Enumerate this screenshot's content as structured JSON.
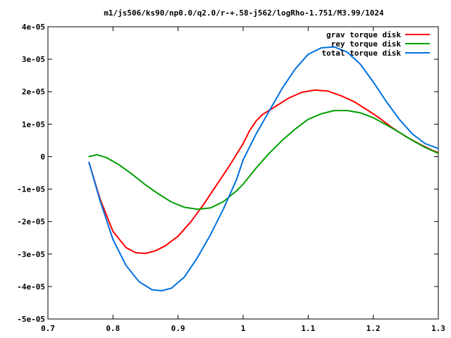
{
  "chart_data": {
    "type": "line",
    "title": "m1/js506/ks90/np0.0/q2.0/r-+.58-j562/logRho-1.751/M3.99/1024",
    "xlabel": "",
    "ylabel": "",
    "xlim": [
      0.7,
      1.3
    ],
    "ylim": [
      -5e-05,
      4e-05
    ],
    "grid": false,
    "legend_position": "top-right",
    "xticks": [
      {
        "value": 0.7,
        "label": "0.7"
      },
      {
        "value": 0.8,
        "label": "0.8"
      },
      {
        "value": 0.9,
        "label": "0.9"
      },
      {
        "value": 1.0,
        "label": "1"
      },
      {
        "value": 1.1,
        "label": "1.1"
      },
      {
        "value": 1.2,
        "label": "1.2"
      },
      {
        "value": 1.3,
        "label": "1.3"
      }
    ],
    "yticks": [
      {
        "value": 4e-05,
        "label": "4e-05"
      },
      {
        "value": 3e-05,
        "label": "3e-05"
      },
      {
        "value": 2e-05,
        "label": "2e-05"
      },
      {
        "value": 1e-05,
        "label": "1e-05"
      },
      {
        "value": 0,
        "label": "0"
      },
      {
        "value": -1e-05,
        "label": "-1e-05"
      },
      {
        "value": -2e-05,
        "label": "-2e-05"
      },
      {
        "value": -3e-05,
        "label": "-3e-05"
      },
      {
        "value": -4e-05,
        "label": "-4e-05"
      },
      {
        "value": -5e-05,
        "label": "-5e-05"
      }
    ],
    "series": [
      {
        "name": "grav torque disk",
        "color": "#ff0000",
        "x": [
          0.763,
          0.78,
          0.8,
          0.82,
          0.835,
          0.85,
          0.865,
          0.88,
          0.9,
          0.92,
          0.94,
          0.96,
          0.98,
          1.0,
          1.01,
          1.02,
          1.03,
          1.05,
          1.07,
          1.09,
          1.11,
          1.13,
          1.15,
          1.17,
          1.19,
          1.21,
          1.23,
          1.25,
          1.27,
          1.29,
          1.3
        ],
        "y": [
          -1.7e-06,
          -1.3e-05,
          -2.3e-05,
          -2.8e-05,
          -2.96e-05,
          -2.98e-05,
          -2.9e-05,
          -2.75e-05,
          -2.45e-05,
          -2e-05,
          -1.45e-05,
          -8.5e-06,
          -2.5e-06,
          4e-06,
          8e-06,
          1.1e-05,
          1.3e-05,
          1.55e-05,
          1.8e-05,
          1.98e-05,
          2.05e-05,
          2.02e-05,
          1.88e-05,
          1.7e-05,
          1.45e-05,
          1.18e-05,
          8.8e-06,
          6.2e-06,
          4e-06,
          2e-06,
          1.2e-06
        ]
      },
      {
        "name": "rey torque disk",
        "color": "#00a000",
        "x": [
          0.763,
          0.775,
          0.79,
          0.81,
          0.83,
          0.85,
          0.87,
          0.89,
          0.91,
          0.93,
          0.95,
          0.97,
          0.99,
          1.0,
          1.02,
          1.04,
          1.06,
          1.08,
          1.1,
          1.12,
          1.14,
          1.16,
          1.18,
          1.2,
          1.22,
          1.24,
          1.26,
          1.28,
          1.3
        ],
        "y": [
          0.0,
          6e-07,
          -3e-07,
          -2.6e-06,
          -5.5e-06,
          -8.7e-06,
          -1.15e-05,
          -1.4e-05,
          -1.56e-05,
          -1.62e-05,
          -1.58e-05,
          -1.38e-05,
          -1.05e-05,
          -8.5e-06,
          -3.5e-06,
          1e-06,
          5e-06,
          8.5e-06,
          1.15e-05,
          1.32e-05,
          1.42e-05,
          1.42e-05,
          1.35e-05,
          1.2e-05,
          9.8e-06,
          7.5e-06,
          5e-06,
          2.8e-06,
          1e-06
        ]
      },
      {
        "name": "total torque disk",
        "color": "#0070e0",
        "x": [
          0.763,
          0.78,
          0.8,
          0.82,
          0.84,
          0.86,
          0.875,
          0.89,
          0.91,
          0.93,
          0.95,
          0.97,
          0.99,
          1.0,
          1.02,
          1.04,
          1.06,
          1.08,
          1.1,
          1.12,
          1.14,
          1.16,
          1.18,
          1.2,
          1.22,
          1.24,
          1.26,
          1.28,
          1.3
        ],
        "y": [
          -1.7e-06,
          -1.35e-05,
          -2.55e-05,
          -3.35e-05,
          -3.85e-05,
          -4.1e-05,
          -4.13e-05,
          -4.05e-05,
          -3.7e-05,
          -3.1e-05,
          -2.4e-05,
          -1.6e-05,
          -7e-06,
          -1e-06,
          7e-06,
          1.4e-05,
          2.1e-05,
          2.7e-05,
          3.15e-05,
          3.35e-05,
          3.38e-05,
          3.22e-05,
          2.85e-05,
          2.3e-05,
          1.7e-05,
          1.15e-05,
          7e-06,
          4e-06,
          2.5e-06
        ]
      }
    ]
  }
}
